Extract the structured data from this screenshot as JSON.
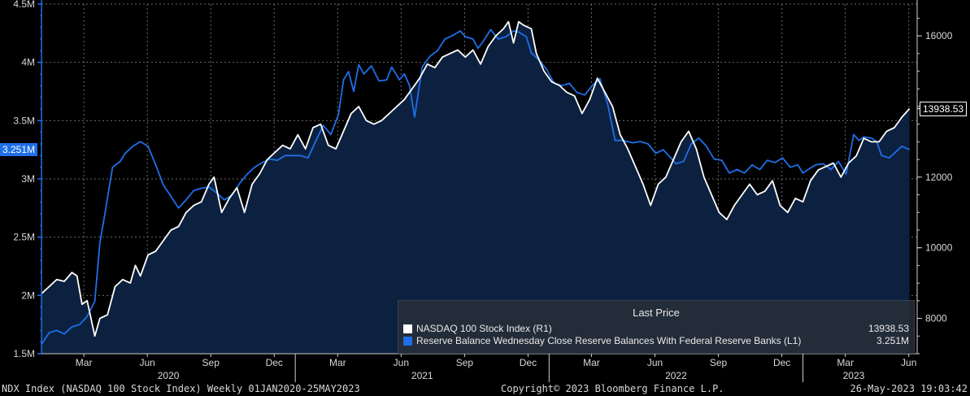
{
  "chart_data": {
    "type": "line",
    "footer": {
      "left": "NDX Index (NASDAQ 100 Stock Index)  Weekly 01JAN2020-25MAY2023",
      "center": "Copyright© 2023 Bloomberg Finance L.P.",
      "right": "26-May-2023 19:03:42"
    },
    "legend": {
      "title": "Last Price",
      "placement": "bottom-right",
      "entries": [
        {
          "name": "NASDAQ 100 Stock Index  (R1)",
          "last": "13938.53",
          "color": "#ffffff"
        },
        {
          "name": "Reserve Balance Wednesday Close Reserve Balances With Federal Reserve Banks  (L1)",
          "last": "3.251M",
          "color": "#1e6fe8"
        }
      ]
    },
    "left_axis": {
      "range": [
        1.5,
        4.5
      ],
      "ticks": [
        {
          "value": 1.5,
          "label": "1.5M"
        },
        {
          "value": 2,
          "label": "2M"
        },
        {
          "value": 2.5,
          "label": "2.5M"
        },
        {
          "value": 3,
          "label": "3M"
        },
        {
          "value": 3.5,
          "label": "3.5M"
        },
        {
          "value": 4,
          "label": "4M"
        },
        {
          "value": 4.5,
          "label": "4.5M"
        }
      ],
      "last_value_label": "3.251M",
      "last_value": 3.251
    },
    "right_axis": {
      "range": [
        7000,
        16900
      ],
      "ticks": [
        {
          "value": 8000,
          "label": "8000"
        },
        {
          "value": 10000,
          "label": "10000"
        },
        {
          "value": 12000,
          "label": "12000"
        },
        {
          "value": 14000,
          "label": "14000"
        },
        {
          "value": 16000,
          "label": "16000"
        }
      ],
      "last_value_label": "13938.53",
      "last_value": 13938.53
    },
    "x_axis": {
      "range": [
        2020.0,
        2023.45
      ],
      "month_ticks": [
        {
          "x": 2020.167,
          "label": "Mar"
        },
        {
          "x": 2020.417,
          "label": "Jun"
        },
        {
          "x": 2020.667,
          "label": "Sep"
        },
        {
          "x": 2020.917,
          "label": "Dec"
        },
        {
          "x": 2021.167,
          "label": "Mar"
        },
        {
          "x": 2021.417,
          "label": "Jun"
        },
        {
          "x": 2021.667,
          "label": "Sep"
        },
        {
          "x": 2021.917,
          "label": "Dec"
        },
        {
          "x": 2022.167,
          "label": "Mar"
        },
        {
          "x": 2022.417,
          "label": "Jun"
        },
        {
          "x": 2022.667,
          "label": "Sep"
        },
        {
          "x": 2022.917,
          "label": "Dec"
        },
        {
          "x": 2023.167,
          "label": "Mar"
        },
        {
          "x": 2023.417,
          "label": "Jun"
        }
      ],
      "year_labels": [
        {
          "x": 2020.5,
          "label": "2020"
        },
        {
          "x": 2021.5,
          "label": "2021"
        },
        {
          "x": 2022.5,
          "label": "2022"
        },
        {
          "x": 2023.2,
          "label": "2023"
        }
      ],
      "year_separators": [
        2021.0,
        2022.0,
        2023.0
      ]
    },
    "series": [
      {
        "name": "Reserve Balance (L1)",
        "axis": "left",
        "color": "#1e6fe8",
        "points": [
          [
            2020.0,
            1.58
          ],
          [
            2020.03,
            1.68
          ],
          [
            2020.06,
            1.7
          ],
          [
            2020.09,
            1.67
          ],
          [
            2020.12,
            1.73
          ],
          [
            2020.15,
            1.75
          ],
          [
            2020.18,
            1.82
          ],
          [
            2020.21,
            1.95
          ],
          [
            2020.23,
            2.45
          ],
          [
            2020.25,
            2.7
          ],
          [
            2020.28,
            3.1
          ],
          [
            2020.31,
            3.15
          ],
          [
            2020.33,
            3.22
          ],
          [
            2020.36,
            3.28
          ],
          [
            2020.39,
            3.32
          ],
          [
            2020.42,
            3.28
          ],
          [
            2020.45,
            3.12
          ],
          [
            2020.48,
            2.95
          ],
          [
            2020.51,
            2.85
          ],
          [
            2020.54,
            2.75
          ],
          [
            2020.57,
            2.82
          ],
          [
            2020.6,
            2.9
          ],
          [
            2020.63,
            2.92
          ],
          [
            2020.66,
            2.93
          ],
          [
            2020.69,
            2.88
          ],
          [
            2020.72,
            2.82
          ],
          [
            2020.75,
            2.86
          ],
          [
            2020.78,
            2.96
          ],
          [
            2020.81,
            3.04
          ],
          [
            2020.84,
            3.1
          ],
          [
            2020.87,
            3.14
          ],
          [
            2020.9,
            3.17
          ],
          [
            2020.93,
            3.16
          ],
          [
            2020.96,
            3.2
          ],
          [
            2020.99,
            3.2
          ],
          [
            2021.02,
            3.2
          ],
          [
            2021.05,
            3.18
          ],
          [
            2021.08,
            3.32
          ],
          [
            2021.11,
            3.46
          ],
          [
            2021.14,
            3.38
          ],
          [
            2021.17,
            3.55
          ],
          [
            2021.19,
            3.85
          ],
          [
            2021.21,
            3.92
          ],
          [
            2021.23,
            3.75
          ],
          [
            2021.25,
            3.98
          ],
          [
            2021.27,
            3.9
          ],
          [
            2021.3,
            3.97
          ],
          [
            2021.33,
            3.84
          ],
          [
            2021.36,
            3.85
          ],
          [
            2021.38,
            3.96
          ],
          [
            2021.41,
            3.85
          ],
          [
            2021.43,
            3.9
          ],
          [
            2021.45,
            3.8
          ],
          [
            2021.47,
            3.53
          ],
          [
            2021.5,
            3.96
          ],
          [
            2021.53,
            4.05
          ],
          [
            2021.56,
            4.1
          ],
          [
            2021.59,
            4.2
          ],
          [
            2021.62,
            4.23
          ],
          [
            2021.65,
            4.27
          ],
          [
            2021.67,
            4.22
          ],
          [
            2021.7,
            4.2
          ],
          [
            2021.72,
            4.12
          ],
          [
            2021.74,
            4.18
          ],
          [
            2021.77,
            4.28
          ],
          [
            2021.8,
            4.2
          ],
          [
            2021.83,
            4.22
          ],
          [
            2021.86,
            4.27
          ],
          [
            2021.88,
            4.26
          ],
          [
            2021.91,
            4.22
          ],
          [
            2021.93,
            4.08
          ],
          [
            2021.96,
            4.02
          ],
          [
            2021.99,
            3.94
          ],
          [
            2022.02,
            3.82
          ],
          [
            2022.05,
            3.8
          ],
          [
            2022.08,
            3.82
          ],
          [
            2022.11,
            3.74
          ],
          [
            2022.14,
            3.72
          ],
          [
            2022.17,
            3.8
          ],
          [
            2022.2,
            3.86
          ],
          [
            2022.23,
            3.65
          ],
          [
            2022.26,
            3.33
          ],
          [
            2022.29,
            3.33
          ],
          [
            2022.33,
            3.31
          ],
          [
            2022.36,
            3.32
          ],
          [
            2022.39,
            3.3
          ],
          [
            2022.42,
            3.22
          ],
          [
            2022.45,
            3.25
          ],
          [
            2022.48,
            3.18
          ],
          [
            2022.5,
            3.13
          ],
          [
            2022.53,
            3.15
          ],
          [
            2022.56,
            3.3
          ],
          [
            2022.59,
            3.35
          ],
          [
            2022.62,
            3.28
          ],
          [
            2022.65,
            3.17
          ],
          [
            2022.68,
            3.16
          ],
          [
            2022.71,
            3.05
          ],
          [
            2022.74,
            3.08
          ],
          [
            2022.77,
            3.05
          ],
          [
            2022.8,
            3.12
          ],
          [
            2022.83,
            3.08
          ],
          [
            2022.86,
            3.16
          ],
          [
            2022.89,
            3.14
          ],
          [
            2022.92,
            3.18
          ],
          [
            2022.95,
            3.1
          ],
          [
            2022.98,
            3.12
          ],
          [
            2023.0,
            3.05
          ],
          [
            2023.02,
            3.08
          ],
          [
            2023.05,
            3.12
          ],
          [
            2023.08,
            3.13
          ],
          [
            2023.11,
            3.08
          ],
          [
            2023.14,
            3.15
          ],
          [
            2023.17,
            3.04
          ],
          [
            2023.2,
            3.38
          ],
          [
            2023.22,
            3.33
          ],
          [
            2023.24,
            3.36
          ],
          [
            2023.27,
            3.35
          ],
          [
            2023.29,
            3.32
          ],
          [
            2023.31,
            3.2
          ],
          [
            2023.34,
            3.18
          ],
          [
            2023.37,
            3.24
          ],
          [
            2023.39,
            3.28
          ],
          [
            2023.42,
            3.251
          ]
        ]
      },
      {
        "name": "NASDAQ 100 Stock Index (R1)",
        "axis": "right",
        "color": "#ffffff",
        "points": [
          [
            2020.0,
            8700
          ],
          [
            2020.03,
            8900
          ],
          [
            2020.06,
            9100
          ],
          [
            2020.09,
            9050
          ],
          [
            2020.12,
            9300
          ],
          [
            2020.14,
            9200
          ],
          [
            2020.16,
            8400
          ],
          [
            2020.18,
            8500
          ],
          [
            2020.21,
            7500
          ],
          [
            2020.23,
            8000
          ],
          [
            2020.26,
            8100
          ],
          [
            2020.29,
            8900
          ],
          [
            2020.32,
            9100
          ],
          [
            2020.35,
            9000
          ],
          [
            2020.37,
            9500
          ],
          [
            2020.39,
            9200
          ],
          [
            2020.42,
            9800
          ],
          [
            2020.45,
            9900
          ],
          [
            2020.48,
            10200
          ],
          [
            2020.51,
            10500
          ],
          [
            2020.54,
            10600
          ],
          [
            2020.57,
            11000
          ],
          [
            2020.6,
            11200
          ],
          [
            2020.63,
            11300
          ],
          [
            2020.66,
            11800
          ],
          [
            2020.68,
            12000
          ],
          [
            2020.71,
            11000
          ],
          [
            2020.74,
            11400
          ],
          [
            2020.77,
            11700
          ],
          [
            2020.8,
            11000
          ],
          [
            2020.83,
            11800
          ],
          [
            2020.86,
            12100
          ],
          [
            2020.89,
            12500
          ],
          [
            2020.92,
            12700
          ],
          [
            2020.95,
            12900
          ],
          [
            2020.98,
            12800
          ],
          [
            2021.01,
            13200
          ],
          [
            2021.04,
            12800
          ],
          [
            2021.07,
            13400
          ],
          [
            2021.1,
            13500
          ],
          [
            2021.13,
            12900
          ],
          [
            2021.16,
            12800
          ],
          [
            2021.19,
            13300
          ],
          [
            2021.22,
            13800
          ],
          [
            2021.25,
            14000
          ],
          [
            2021.28,
            13600
          ],
          [
            2021.31,
            13500
          ],
          [
            2021.34,
            13600
          ],
          [
            2021.37,
            13800
          ],
          [
            2021.4,
            14000
          ],
          [
            2021.43,
            14200
          ],
          [
            2021.46,
            14500
          ],
          [
            2021.49,
            14800
          ],
          [
            2021.52,
            15200
          ],
          [
            2021.55,
            15100
          ],
          [
            2021.58,
            15400
          ],
          [
            2021.61,
            15500
          ],
          [
            2021.64,
            15600
          ],
          [
            2021.67,
            15400
          ],
          [
            2021.7,
            15600
          ],
          [
            2021.73,
            15200
          ],
          [
            2021.76,
            15700
          ],
          [
            2021.79,
            16000
          ],
          [
            2021.82,
            16200
          ],
          [
            2021.84,
            16400
          ],
          [
            2021.86,
            15800
          ],
          [
            2021.88,
            16400
          ],
          [
            2021.9,
            16300
          ],
          [
            2021.93,
            16200
          ],
          [
            2021.95,
            15500
          ],
          [
            2021.98,
            15000
          ],
          [
            2022.01,
            14700
          ],
          [
            2022.04,
            14600
          ],
          [
            2022.07,
            14400
          ],
          [
            2022.1,
            14300
          ],
          [
            2022.13,
            13800
          ],
          [
            2022.16,
            14200
          ],
          [
            2022.19,
            14800
          ],
          [
            2022.22,
            14400
          ],
          [
            2022.25,
            14000
          ],
          [
            2022.28,
            13200
          ],
          [
            2022.31,
            12800
          ],
          [
            2022.34,
            12300
          ],
          [
            2022.37,
            11800
          ],
          [
            2022.4,
            11200
          ],
          [
            2022.43,
            11800
          ],
          [
            2022.46,
            12000
          ],
          [
            2022.49,
            12500
          ],
          [
            2022.52,
            13000
          ],
          [
            2022.55,
            13300
          ],
          [
            2022.58,
            12800
          ],
          [
            2022.61,
            12000
          ],
          [
            2022.64,
            11500
          ],
          [
            2022.67,
            11000
          ],
          [
            2022.7,
            10800
          ],
          [
            2022.73,
            11200
          ],
          [
            2022.76,
            11500
          ],
          [
            2022.79,
            11800
          ],
          [
            2022.82,
            11500
          ],
          [
            2022.85,
            11600
          ],
          [
            2022.88,
            11900
          ],
          [
            2022.91,
            11200
          ],
          [
            2022.94,
            11000
          ],
          [
            2022.97,
            11400
          ],
          [
            2023.0,
            11300
          ],
          [
            2023.03,
            11900
          ],
          [
            2023.06,
            12200
          ],
          [
            2023.09,
            12300
          ],
          [
            2023.12,
            12400
          ],
          [
            2023.15,
            12000
          ],
          [
            2023.18,
            12400
          ],
          [
            2023.21,
            12600
          ],
          [
            2023.24,
            13100
          ],
          [
            2023.27,
            13000
          ],
          [
            2023.3,
            13000
          ],
          [
            2023.33,
            13300
          ],
          [
            2023.36,
            13400
          ],
          [
            2023.39,
            13700
          ],
          [
            2023.42,
            13938.53
          ]
        ]
      }
    ]
  }
}
